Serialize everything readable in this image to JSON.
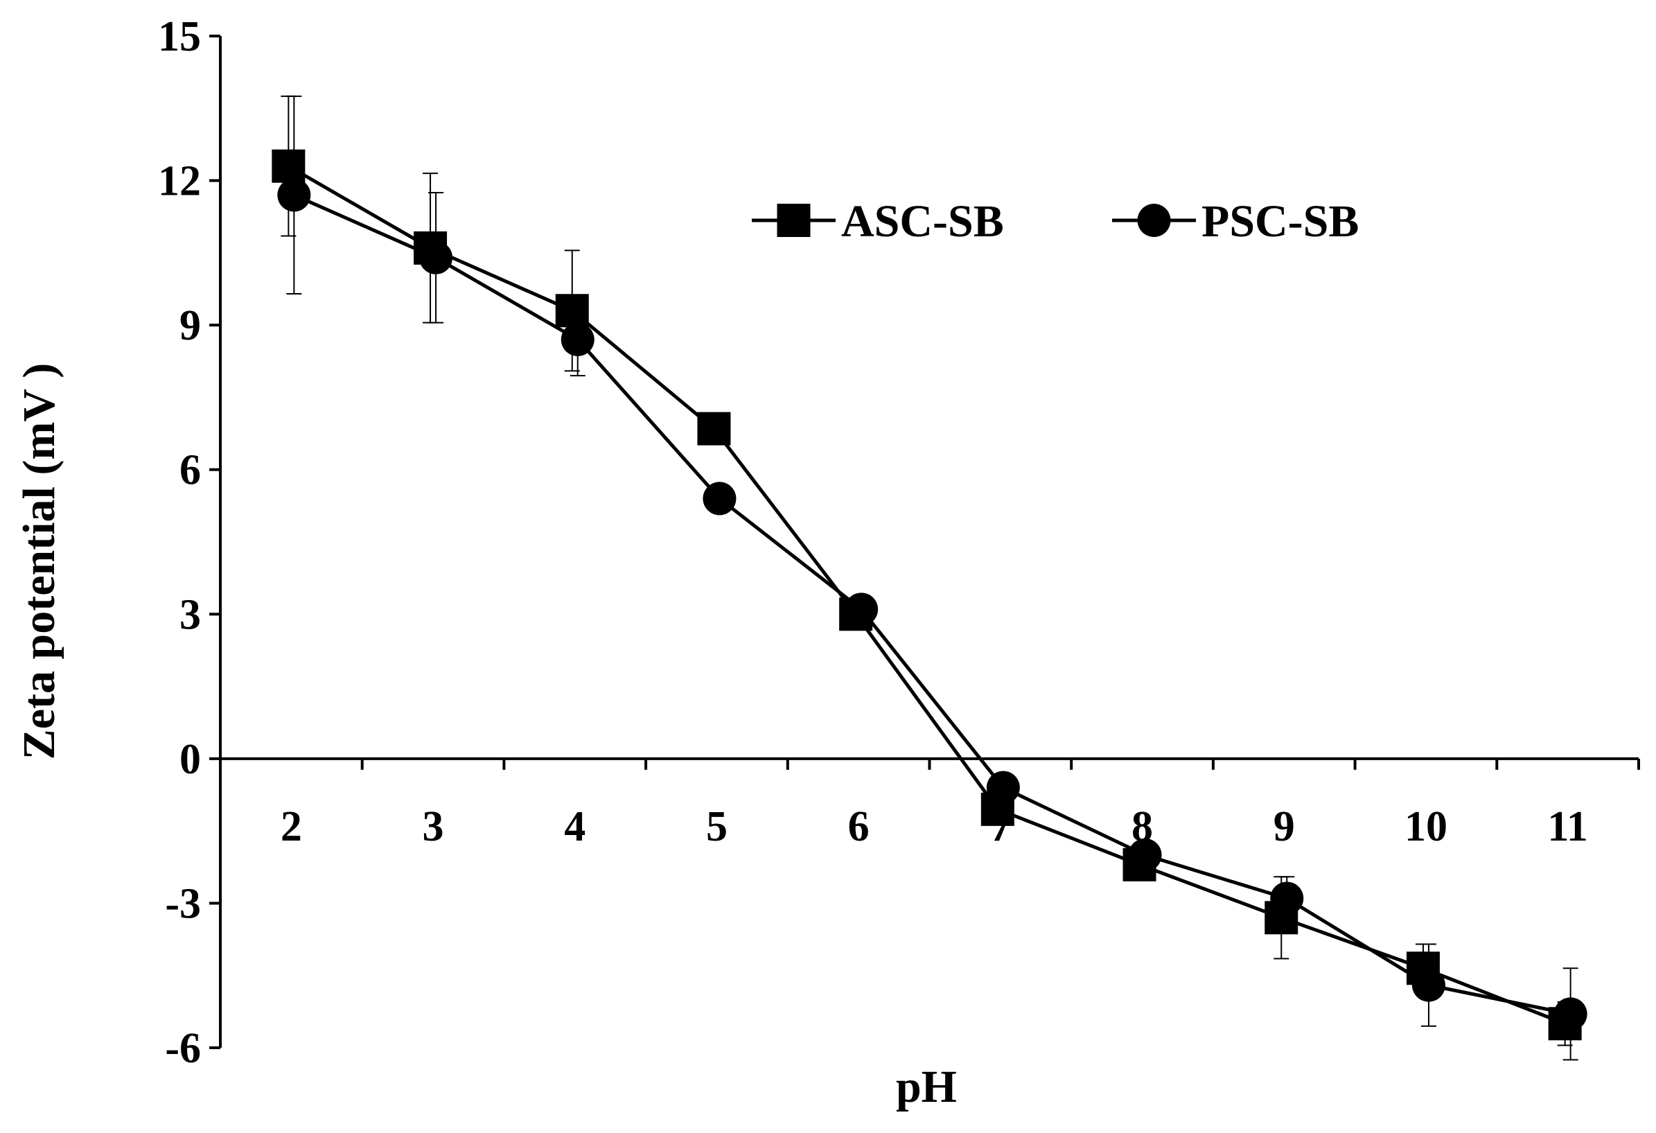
{
  "chart_data": {
    "type": "line",
    "title": "",
    "xlabel": "pH",
    "ylabel": "Zeta potential (mV )",
    "categories": [
      "2",
      "3",
      "4",
      "5",
      "6",
      "7",
      "8",
      "9",
      "10",
      "11"
    ],
    "ylim": [
      -6,
      15
    ],
    "yticks": [
      "15",
      "12",
      "9",
      "6",
      "3",
      "0",
      "-3",
      "-6"
    ],
    "ytick_values": [
      15,
      12,
      9,
      6,
      3,
      0,
      -3,
      -6
    ],
    "grid": false,
    "legend_position": "top-right",
    "series": [
      {
        "name": "ASC-SB",
        "marker": "square",
        "values": [
          12.3,
          10.6,
          9.3,
          6.85,
          3.0,
          -1.05,
          -2.2,
          -3.3,
          -4.35,
          -5.5
        ],
        "errors": [
          1.45,
          1.55,
          1.25,
          0.25,
          0.2,
          0.2,
          0.15,
          0.85,
          0.5,
          0.45
        ]
      },
      {
        "name": "PSC-SB",
        "marker": "circle",
        "values": [
          11.7,
          10.4,
          8.7,
          5.4,
          3.1,
          -0.6,
          -2.0,
          -2.9,
          -4.7,
          -5.3
        ],
        "errors": [
          2.05,
          1.35,
          0.75,
          0.2,
          0.2,
          0.2,
          0.15,
          0.45,
          0.85,
          0.95
        ]
      }
    ],
    "colors": {
      "line": "#000000",
      "marker": "#000000",
      "axis": "#000000"
    }
  }
}
